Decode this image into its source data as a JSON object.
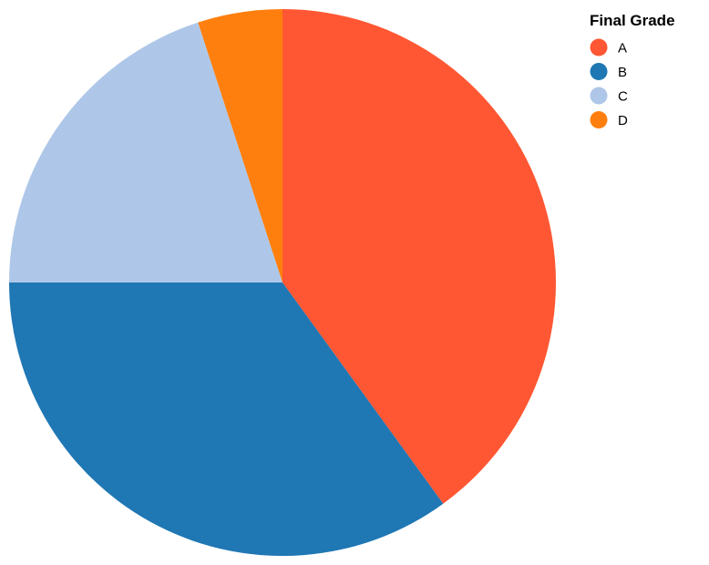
{
  "chart_data": {
    "type": "pie",
    "legend_title": "Final Grade",
    "legend_position": "top-right",
    "categories": [
      "A",
      "B",
      "C",
      "D"
    ],
    "values": [
      40,
      35,
      20,
      5
    ],
    "colors": [
      "#ff5733",
      "#1f77b4",
      "#aec7e8",
      "#ff7f0e"
    ],
    "start_angle_deg": 0,
    "direction": "clockwise"
  }
}
